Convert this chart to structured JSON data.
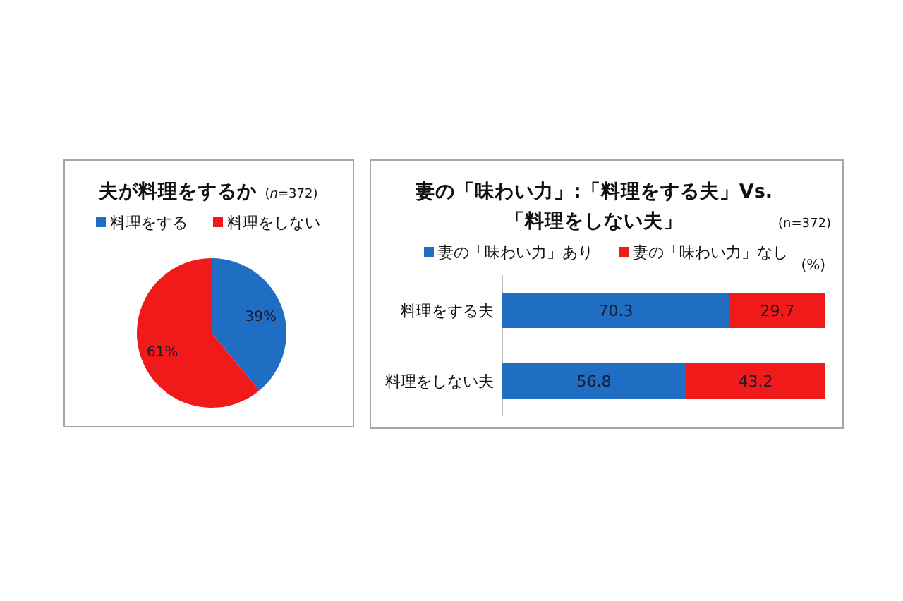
{
  "chart_data": [
    {
      "type": "pie",
      "title": "夫が料理をするか",
      "subtitle": "(*n*=372)",
      "categories": [
        "料理をする",
        "料理をしない"
      ],
      "values": [
        39,
        61
      ],
      "colors": [
        "#1f6ec4",
        "#f01a1a"
      ],
      "value_labels": [
        "39%",
        "61%"
      ],
      "legend": "top"
    },
    {
      "type": "bar",
      "orientation": "horizontal",
      "stacked": true,
      "title": "妻の「味わい力」:「料理をする夫」Vs. 「料理をしない夫」",
      "subtitle": "(n=372)",
      "xlabel": "(%)",
      "categories": [
        "料理をする夫",
        "料理をしない夫"
      ],
      "series": [
        {
          "name": "妻の「味わい力」あり",
          "color": "#1f6ec4",
          "values": [
            70.3,
            56.8
          ]
        },
        {
          "name": "妻の「味わい力」なし",
          "color": "#f01a1a",
          "values": [
            29.7,
            43.2
          ]
        }
      ],
      "xlim": [
        0,
        100
      ],
      "data_labels": true,
      "legend": "top",
      "tick_labels": "y"
    }
  ]
}
